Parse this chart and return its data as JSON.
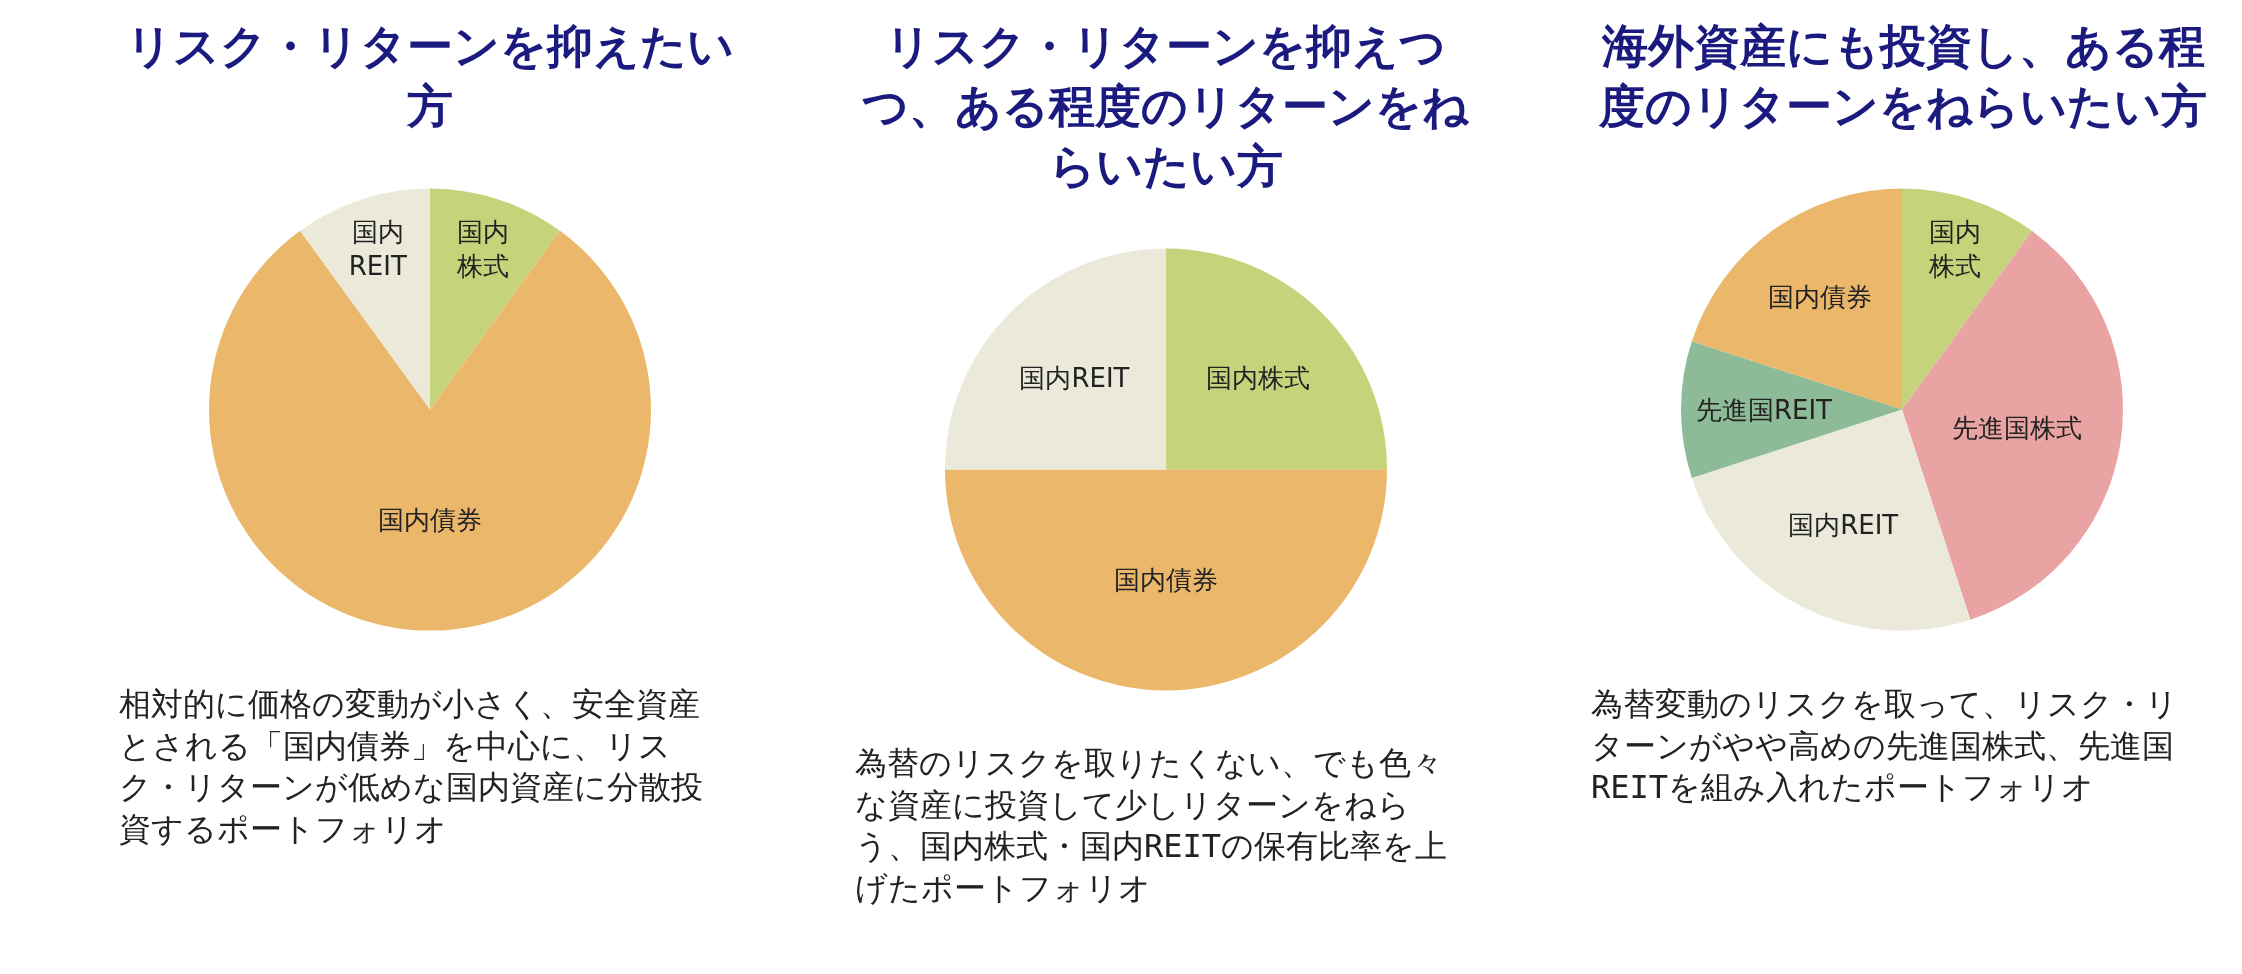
{
  "chart_data": [
    {
      "type": "pie",
      "title": "リスク・リターンを抑えたい方",
      "categories": [
        "国内株式",
        "国内債券",
        "国内REIT"
      ],
      "values": [
        10,
        80,
        10
      ],
      "colors": [
        "#c5d47a",
        "#ebb76b",
        "#eae9da"
      ],
      "annotations": [
        "相対的に価格の変動が小さく、安全資産とされる「国内債券」を中心に、リスク・リターンが低めな国内資産に分散投資するポートフォリオ"
      ]
    },
    {
      "type": "pie",
      "title": "リスク・リターンを抑えつつ、ある程度のリターンをねらいたい方",
      "categories": [
        "国内株式",
        "国内債券",
        "国内REIT"
      ],
      "values": [
        25,
        50,
        25
      ],
      "colors": [
        "#c5d47a",
        "#ebb76b",
        "#eae9da"
      ],
      "annotations": [
        "為替のリスクを取りたくない、でも色々な資産に投資して少しリターンをねらう、国内株式・国内REITの保有比率を上げたポートフォリオ"
      ]
    },
    {
      "type": "pie",
      "title": "海外資産にも投資し、ある程度のリターンをねらいたい方",
      "categories": [
        "国内株式",
        "先進国株式",
        "国内REIT",
        "先進国REIT",
        "国内債券"
      ],
      "values": [
        10,
        35,
        25,
        10,
        20
      ],
      "colors": [
        "#c5d47a",
        "#e9a3a2",
        "#eae9da",
        "#8dba97",
        "#ebb76b"
      ],
      "annotations": [
        "為替変動のリスクを取って、リスク・リターンがやや高めの先進国株式、先進国REITを組み入れたポートフォリオ"
      ]
    }
  ]
}
